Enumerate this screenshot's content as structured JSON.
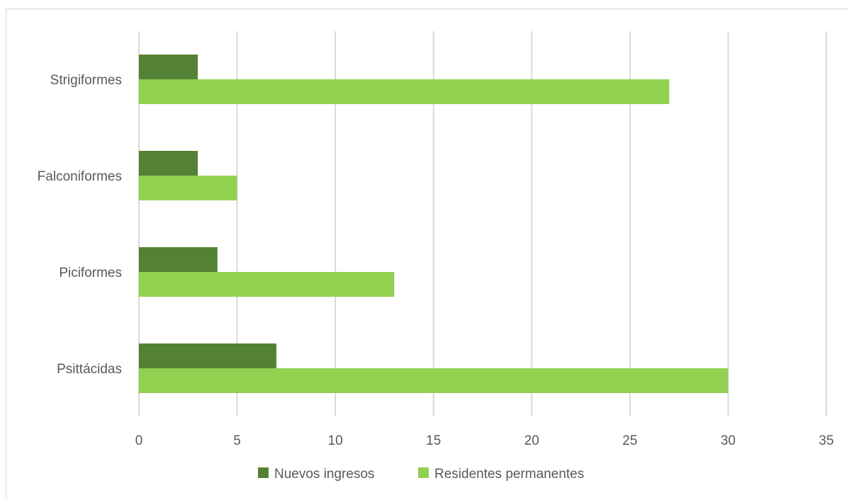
{
  "chart_data": {
    "type": "bar",
    "orientation": "horizontal",
    "categories": [
      "Strigiformes",
      "Falconiformes",
      "Piciformes",
      "Psittácidas"
    ],
    "series": [
      {
        "name": "Nuevos ingresos",
        "values": [
          3,
          3,
          4,
          7
        ],
        "color": "#548235"
      },
      {
        "name": "Residentes permanentes",
        "values": [
          27,
          5,
          13,
          30
        ],
        "color": "#92d050"
      }
    ],
    "xlim": [
      0,
      35
    ],
    "x_ticks": [
      0,
      5,
      10,
      15,
      20,
      25,
      30,
      35
    ],
    "grid": "vertical",
    "legend_position": "bottom"
  }
}
